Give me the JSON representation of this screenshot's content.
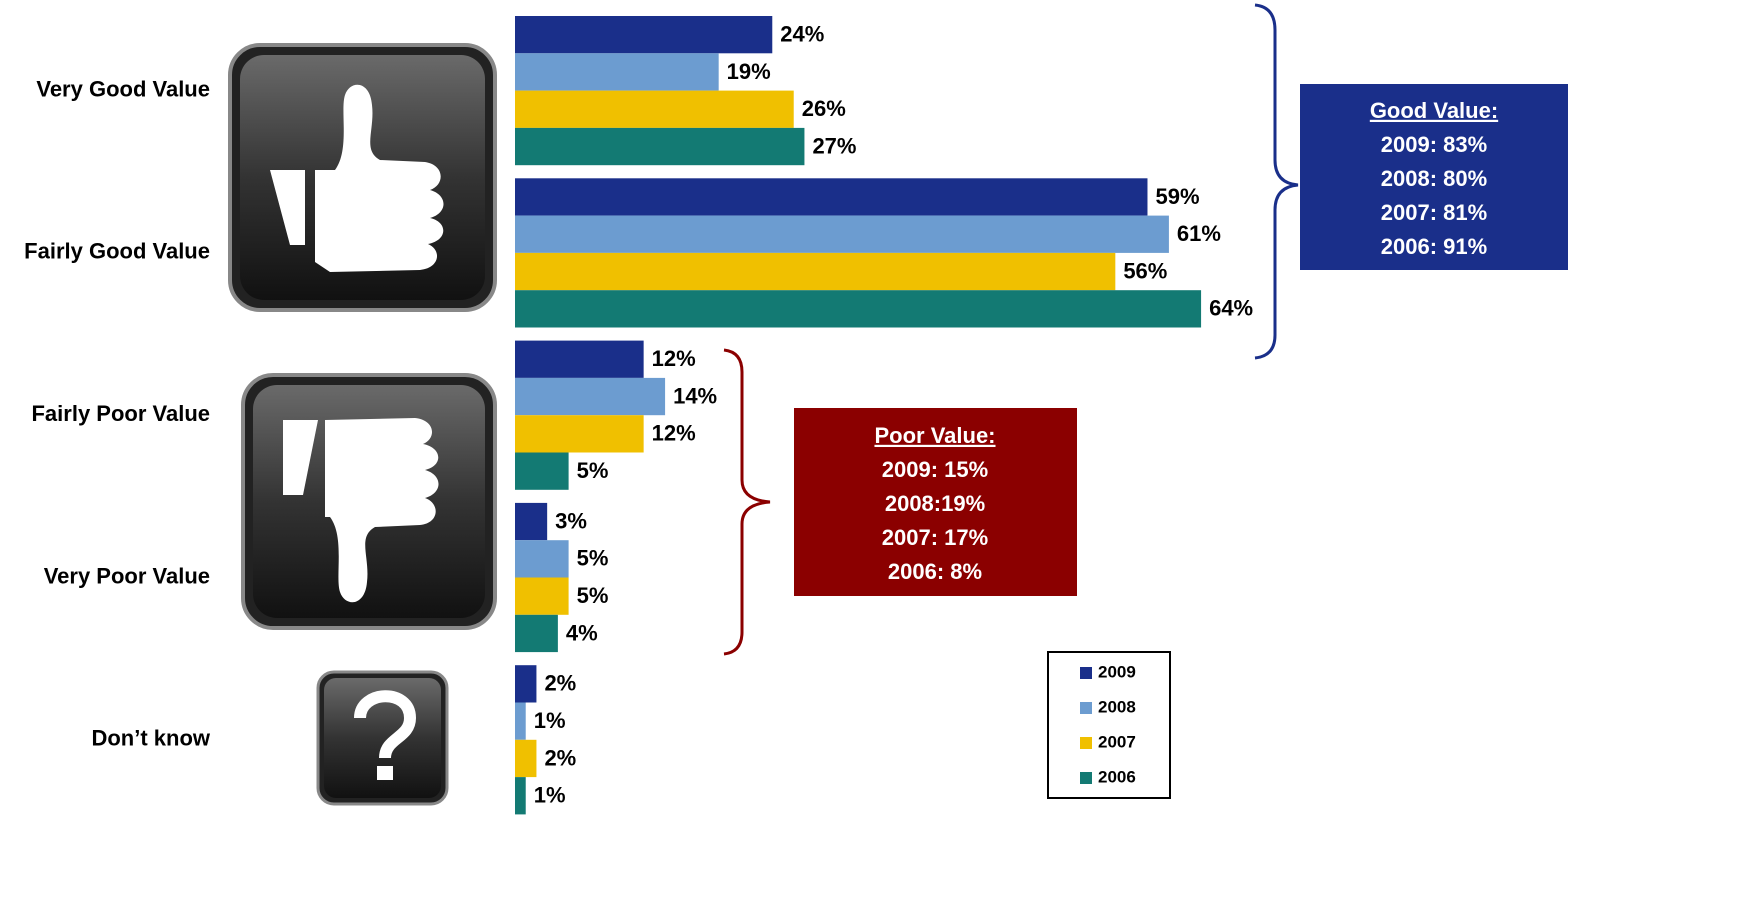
{
  "chart_data": {
    "type": "bar",
    "orientation": "horizontal",
    "categories": [
      "Very Good Value",
      "Fairly Good Value",
      "Fairly Poor Value",
      "Very Poor Value",
      "Don’t know"
    ],
    "series": [
      {
        "name": "2009",
        "color": "#1a2f8a",
        "values": [
          24,
          59,
          12,
          3,
          2
        ],
        "value_labels": [
          "24%",
          "59%",
          "12%",
          "3%",
          "2%"
        ]
      },
      {
        "name": "2008",
        "color": "#6c9cd0",
        "values": [
          19,
          61,
          14,
          5,
          1
        ],
        "value_labels": [
          "19%",
          "61%",
          "14%",
          "5%",
          "1%"
        ]
      },
      {
        "name": "2007",
        "color": "#f0c000",
        "values": [
          26,
          56,
          12,
          5,
          2
        ],
        "value_labels": [
          "26%",
          "56%",
          "12%",
          "5%",
          "2%"
        ]
      },
      {
        "name": "2006",
        "color": "#137a73",
        "values": [
          27,
          64,
          5,
          4,
          1
        ],
        "value_labels": [
          "27%",
          "64%",
          "5%",
          "4%",
          "1%"
        ]
      }
    ],
    "xlim": [
      0,
      100
    ],
    "legend": "bottom-right",
    "annotations": {
      "good": [
        "Good Value:",
        "2009: 83%",
        "2008: 80%",
        "2007: 81%",
        "2006: 91%"
      ],
      "poor": [
        "Poor Value:",
        "2009: 15%",
        "2008:19%",
        "2007: 17%",
        "2006: 8%"
      ]
    }
  }
}
